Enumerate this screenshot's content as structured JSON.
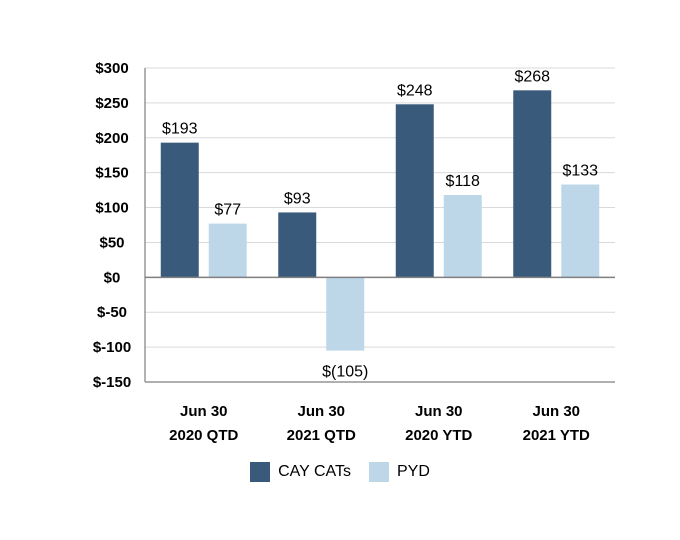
{
  "chart_data": {
    "type": "bar",
    "categories": [
      [
        "Jun 30",
        "2020 QTD"
      ],
      [
        "Jun 30",
        "2021 QTD"
      ],
      [
        "Jun 30",
        "2020 YTD"
      ],
      [
        "Jun 30",
        "2021 YTD"
      ]
    ],
    "series": [
      {
        "name": "CAY CATs",
        "color": "#3a5a7c",
        "values": [
          193,
          93,
          248,
          268
        ],
        "labels": [
          "$193",
          "$93",
          "$248",
          "$268"
        ]
      },
      {
        "name": "PYD",
        "color": "#bdd7e9",
        "values": [
          77,
          -105,
          118,
          133
        ],
        "labels": [
          "$77",
          "$(105)",
          "$118",
          "$133"
        ]
      }
    ],
    "yticks": [
      300,
      250,
      200,
      150,
      100,
      50,
      0,
      -50,
      -100,
      -150
    ],
    "ytick_labels": [
      "$300",
      "$250",
      "$200",
      "$150",
      "$100",
      "$50",
      "$0",
      "$-50",
      "$-100",
      "$-150"
    ],
    "ylim": [
      -150,
      300
    ],
    "title": "",
    "xlabel": "",
    "ylabel": "",
    "grid": true,
    "legend_position": "bottom-center"
  },
  "legend": {
    "items": [
      {
        "label": "CAY CATs",
        "color": "#3a5a7c"
      },
      {
        "label": "PYD",
        "color": "#bdd7e9"
      }
    ]
  }
}
